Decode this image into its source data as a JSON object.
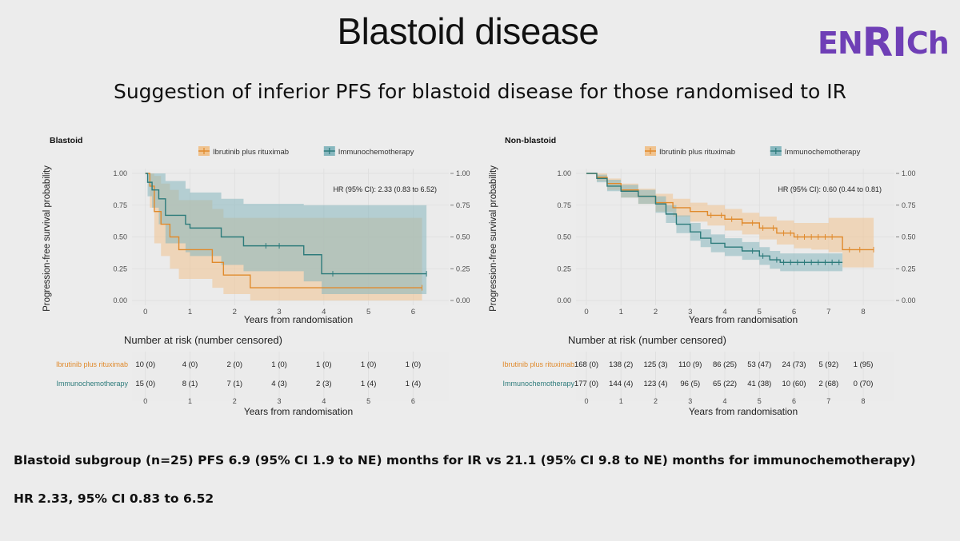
{
  "slide": {
    "title": "Blastoid disease",
    "logo_parts": [
      "EN",
      "RI",
      "Ch"
    ],
    "subtitle": "Suggestion of inferior PFS for blastoid disease for those randomised to IR",
    "footer_line1": "Blastoid subgroup (n=25) PFS 6.9 (95% CI 1.9 to NE) months for IR vs 21.1 (95% CI 9.8 to NE) months for immunochemotherapy)",
    "footer_line2": "HR 2.33, 95% CI 0.83 to 6.52"
  },
  "colors": {
    "ir": "#e08a2c",
    "ir_fill": "#f0c38f",
    "ic": "#2d7b7b",
    "ic_fill": "#87b7be",
    "grid": "#dedede",
    "panel": "#ebebeb",
    "logo": "#6f3fb6"
  },
  "chart_data": [
    {
      "type": "line",
      "panel": "Blastoid",
      "title": "Blastoid",
      "legend": [
        "Ibrutinib plus rituximab",
        "Immunochemotherapy"
      ],
      "legend_position": "top",
      "ylabel": "Progression-free survival probability",
      "xlabel": "Years from randomisation",
      "x_ticks": [
        0,
        1,
        2,
        3,
        4,
        5,
        6
      ],
      "xlim": [
        -0.3,
        6.8
      ],
      "y_ticks": [
        "0.00",
        "0.25",
        "0.50",
        "0.75",
        "1.00"
      ],
      "y_tick_values": [
        0,
        0.25,
        0.5,
        0.75,
        1.0
      ],
      "ylim": [
        0,
        1
      ],
      "hr_text": "HR (95% CI): 2.33 (0.83 to 6.52)",
      "series": [
        {
          "name": "Ibrutinib plus rituximab",
          "x": [
            0,
            0.1,
            0.2,
            0.35,
            0.55,
            0.75,
            1.5,
            1.75,
            2.35,
            6.2
          ],
          "y": [
            1.0,
            0.9,
            0.7,
            0.6,
            0.5,
            0.4,
            0.3,
            0.2,
            0.1,
            0.1
          ],
          "lower": [
            1.0,
            0.73,
            0.45,
            0.35,
            0.25,
            0.17,
            0.1,
            0.05,
            0.0,
            0.0
          ],
          "upper": [
            1.0,
            1.0,
            0.98,
            0.92,
            0.87,
            0.79,
            0.72,
            0.65,
            0.65,
            0.65
          ],
          "censored_x": [
            6.2
          ]
        },
        {
          "name": "Immunochemotherapy",
          "x": [
            0,
            0.05,
            0.15,
            0.3,
            0.45,
            0.9,
            1.0,
            1.7,
            2.2,
            3.55,
            3.95,
            6.3
          ],
          "y": [
            1.0,
            0.93,
            0.87,
            0.8,
            0.67,
            0.6,
            0.57,
            0.5,
            0.43,
            0.36,
            0.21,
            0.21
          ],
          "lower": [
            1.0,
            0.82,
            0.73,
            0.6,
            0.45,
            0.38,
            0.35,
            0.28,
            0.23,
            0.15,
            0.05,
            0.05
          ],
          "upper": [
            1.0,
            1.0,
            1.0,
            1.0,
            0.94,
            0.88,
            0.85,
            0.8,
            0.76,
            0.75,
            0.75,
            0.75
          ],
          "censored_x": [
            2.7,
            3.0,
            4.2,
            6.3
          ]
        }
      ],
      "risk_table": {
        "title": "Number at risk (number censored)",
        "xlabel": "Years from randomisation",
        "rows": [
          {
            "label": "Ibrutinib plus rituximab",
            "values": [
              "10 (0)",
              "4 (0)",
              "2 (0)",
              "1 (0)",
              "1 (0)",
              "1 (0)",
              "1 (0)"
            ]
          },
          {
            "label": "Immunochemotherapy",
            "values": [
              "15 (0)",
              "8 (1)",
              "7 (1)",
              "4 (3)",
              "2 (3)",
              "1 (4)",
              "1 (4)"
            ]
          }
        ]
      }
    },
    {
      "type": "line",
      "panel": "Non-blastoid",
      "title": "Non-blastoid",
      "legend": [
        "Ibrutinib plus rituximab",
        "Immunochemotherapy"
      ],
      "legend_position": "top",
      "ylabel": "Progression-free survival probability",
      "xlabel": "Years from randomisation",
      "x_ticks": [
        0,
        1,
        2,
        3,
        4,
        5,
        6,
        7,
        8
      ],
      "xlim": [
        -0.3,
        8.9
      ],
      "y_ticks": [
        "0.00",
        "0.25",
        "0.50",
        "0.75",
        "1.00"
      ],
      "y_tick_values": [
        0,
        0.25,
        0.5,
        0.75,
        1.0
      ],
      "ylim": [
        0,
        1
      ],
      "hr_text": "HR (95% CI): 0.60 (0.44 to 0.81)",
      "series": [
        {
          "name": "Ibrutinib plus rituximab",
          "x": [
            0,
            0.3,
            0.6,
            1.0,
            1.5,
            2.0,
            2.5,
            3.0,
            3.5,
            4.0,
            4.5,
            5.0,
            5.5,
            6.0,
            6.5,
            7.0,
            7.4,
            8.3
          ],
          "y": [
            1.0,
            0.97,
            0.92,
            0.87,
            0.82,
            0.77,
            0.73,
            0.7,
            0.67,
            0.64,
            0.61,
            0.57,
            0.53,
            0.5,
            0.5,
            0.5,
            0.4,
            0.4
          ],
          "lower": [
            1.0,
            0.94,
            0.87,
            0.81,
            0.76,
            0.7,
            0.66,
            0.62,
            0.59,
            0.55,
            0.52,
            0.48,
            0.44,
            0.41,
            0.4,
            0.38,
            0.26,
            0.24
          ],
          "upper": [
            1.0,
            1.0,
            0.96,
            0.92,
            0.88,
            0.84,
            0.8,
            0.77,
            0.75,
            0.72,
            0.69,
            0.66,
            0.63,
            0.61,
            0.61,
            0.65,
            0.65,
            0.65
          ],
          "censored_x": [
            3.6,
            3.9,
            4.2,
            4.5,
            4.8,
            5.1,
            5.4,
            5.7,
            5.9,
            6.1,
            6.3,
            6.5,
            6.7,
            6.9,
            7.1,
            7.6,
            7.9,
            8.3
          ]
        },
        {
          "name": "Immunochemotherapy",
          "x": [
            0,
            0.3,
            0.6,
            1.0,
            1.5,
            2.0,
            2.3,
            2.6,
            3.0,
            3.3,
            3.6,
            4.0,
            4.5,
            5.0,
            5.3,
            5.6,
            6.0,
            7.0,
            7.4
          ],
          "y": [
            1.0,
            0.96,
            0.9,
            0.86,
            0.82,
            0.76,
            0.68,
            0.6,
            0.54,
            0.49,
            0.45,
            0.42,
            0.39,
            0.35,
            0.32,
            0.3,
            0.3,
            0.3,
            0.3
          ],
          "lower": [
            1.0,
            0.93,
            0.86,
            0.81,
            0.76,
            0.69,
            0.61,
            0.53,
            0.47,
            0.42,
            0.38,
            0.35,
            0.32,
            0.28,
            0.25,
            0.23,
            0.23,
            0.23,
            0.23
          ],
          "upper": [
            1.0,
            0.99,
            0.95,
            0.91,
            0.87,
            0.82,
            0.75,
            0.67,
            0.61,
            0.56,
            0.52,
            0.49,
            0.46,
            0.42,
            0.39,
            0.37,
            0.37,
            0.37,
            0.37
          ],
          "censored_x": [
            4.8,
            5.1,
            5.5,
            5.7,
            5.9,
            6.1,
            6.3,
            6.5,
            6.7,
            6.9,
            7.1,
            7.3
          ]
        }
      ],
      "risk_table": {
        "title": "Number at risk (number censored)",
        "xlabel": "Years from randomisation",
        "rows": [
          {
            "label": "Ibrutinib plus rituximab",
            "values": [
              "168 (0)",
              "138 (2)",
              "125 (3)",
              "110 (9)",
              "86 (25)",
              "53 (47)",
              "24 (73)",
              "5 (92)",
              "1 (95)"
            ]
          },
          {
            "label": "Immunochemotherapy",
            "values": [
              "177 (0)",
              "144 (4)",
              "123 (4)",
              "96 (5)",
              "65 (22)",
              "41 (38)",
              "10 (60)",
              "2 (68)",
              "0 (70)"
            ]
          }
        ]
      }
    }
  ]
}
